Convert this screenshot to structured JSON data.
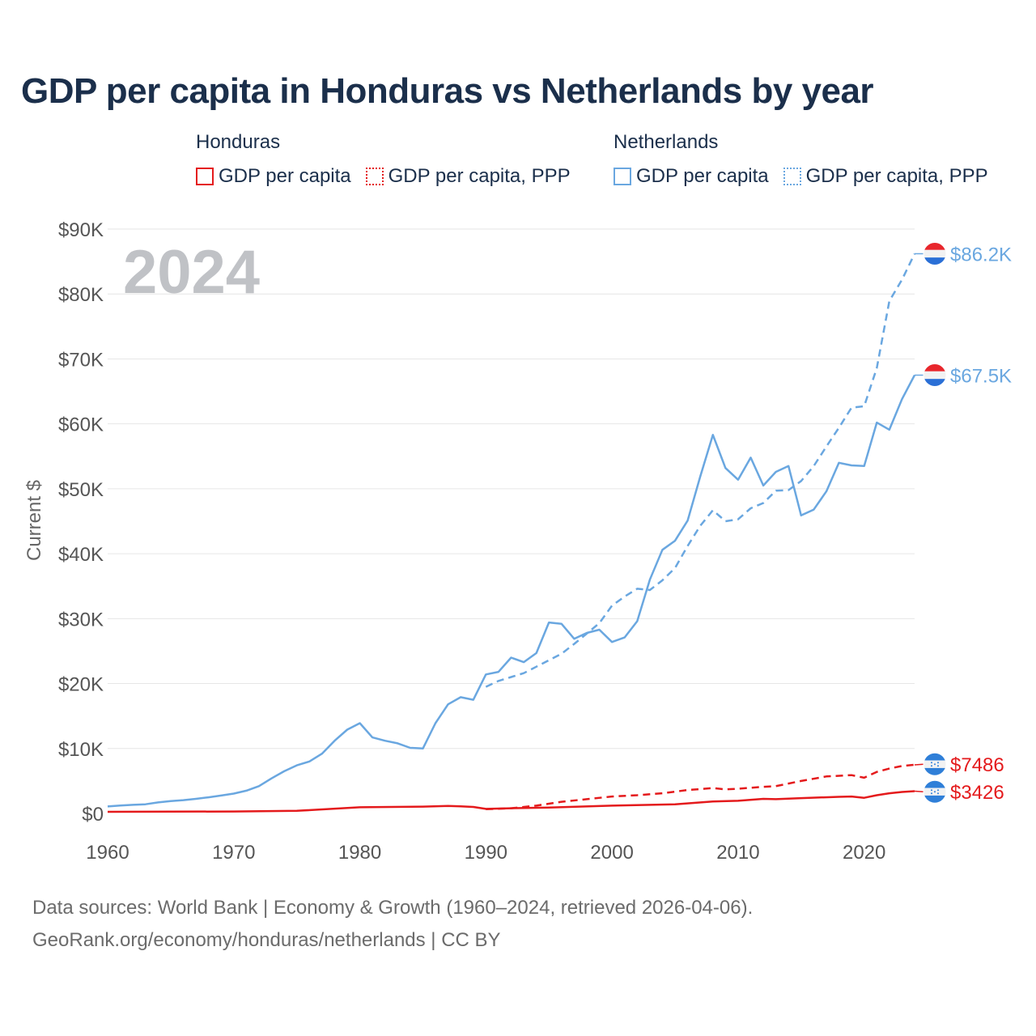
{
  "title": "GDP per capita in Honduras vs Netherlands by year",
  "legend": {
    "groups": [
      {
        "name": "Honduras",
        "items": [
          "GDP per capita",
          "GDP per capita, PPP"
        ]
      },
      {
        "name": "Netherlands",
        "items": [
          "GDP per capita",
          "GDP per capita, PPP"
        ]
      }
    ]
  },
  "colors": {
    "honduras": "#e41a1c",
    "netherlands": "#6aa7e0",
    "year_label": "#c0c2c6"
  },
  "footer": {
    "line1": "Data sources: World Bank | Economy & Growth (1960–2024, retrieved 2026-04-06).",
    "line2": "GeoRank.org/economy/honduras/netherlands | CC BY"
  },
  "chart_data": {
    "type": "line",
    "ylabel": "Current $",
    "year_label": "2024",
    "xlim": [
      1960,
      2024
    ],
    "ylim": [
      0,
      90000
    ],
    "x_ticks": [
      1960,
      1970,
      1980,
      1990,
      2000,
      2010,
      2020
    ],
    "x_tick_labels": [
      "1960",
      "1970",
      "1980",
      "1990",
      "2000",
      "2010",
      "2020"
    ],
    "y_ticks": [
      0,
      10000,
      20000,
      30000,
      40000,
      50000,
      60000,
      70000,
      80000,
      90000
    ],
    "y_tick_labels": [
      "$0",
      "$10K",
      "$20K",
      "$30K",
      "$40K",
      "$50K",
      "$60K",
      "$70K",
      "$80K",
      "$90K"
    ],
    "series": [
      {
        "name": "Netherlands GDP per capita",
        "country": "netherlands",
        "style": "solid",
        "end_label": "$67.5K",
        "x": [
          1960,
          1961,
          1962,
          1963,
          1964,
          1965,
          1966,
          1967,
          1968,
          1969,
          1970,
          1971,
          1972,
          1973,
          1974,
          1975,
          1976,
          1977,
          1978,
          1979,
          1980,
          1981,
          1982,
          1983,
          1984,
          1985,
          1986,
          1987,
          1988,
          1989,
          1990,
          1991,
          1992,
          1993,
          1994,
          1995,
          1996,
          1997,
          1998,
          1999,
          2000,
          2001,
          2002,
          2003,
          2004,
          2005,
          2006,
          2007,
          2008,
          2009,
          2010,
          2011,
          2012,
          2013,
          2014,
          2015,
          2016,
          2017,
          2018,
          2019,
          2020,
          2021,
          2022,
          2023,
          2024
        ],
        "values": [
          1070,
          1210,
          1320,
          1410,
          1700,
          1900,
          2050,
          2250,
          2480,
          2750,
          3050,
          3500,
          4200,
          5400,
          6500,
          7400,
          8000,
          9200,
          11200,
          12900,
          13900,
          11700,
          11200,
          10800,
          10100,
          10000,
          13900,
          16800,
          17900,
          17500,
          21400,
          21800,
          24000,
          23300,
          24700,
          29400,
          29200,
          26900,
          27800,
          28300,
          26400,
          27100,
          29600,
          36000,
          40600,
          42000,
          45100,
          51900,
          58300,
          53200,
          51400,
          54800,
          50500,
          52600,
          53500,
          45900,
          46800,
          49600,
          54000,
          53600,
          53500,
          60200,
          59100,
          63800,
          67500
        ]
      },
      {
        "name": "Netherlands GDP per capita, PPP",
        "country": "netherlands",
        "style": "dashed",
        "end_label": "$86.2K",
        "x": [
          1990,
          1991,
          1992,
          1993,
          1994,
          1995,
          1996,
          1997,
          1998,
          1999,
          2000,
          2001,
          2002,
          2003,
          2004,
          2005,
          2006,
          2007,
          2008,
          2009,
          2010,
          2011,
          2012,
          2013,
          2014,
          2015,
          2016,
          2017,
          2018,
          2019,
          2020,
          2021,
          2022,
          2023,
          2024
        ],
        "values": [
          19500,
          20400,
          21000,
          21600,
          22600,
          23600,
          24600,
          26100,
          27700,
          29300,
          32000,
          33400,
          34600,
          34400,
          35900,
          37800,
          41200,
          44300,
          46700,
          45000,
          45300,
          47000,
          47800,
          49700,
          49800,
          51200,
          53500,
          56500,
          59400,
          62500,
          62700,
          68600,
          78900,
          82200,
          86200
        ]
      },
      {
        "name": "Honduras GDP per capita",
        "country": "honduras",
        "style": "solid",
        "end_label": "$3426",
        "x": [
          1960,
          1965,
          1970,
          1975,
          1980,
          1985,
          1987,
          1988,
          1989,
          1990,
          1992,
          1995,
          2000,
          2005,
          2008,
          2010,
          2012,
          2013,
          2015,
          2018,
          2019,
          2020,
          2021,
          2022,
          2023,
          2024
        ],
        "values": [
          250,
          280,
          300,
          400,
          950,
          1050,
          1150,
          1100,
          1000,
          700,
          800,
          900,
          1200,
          1400,
          1850,
          1950,
          2250,
          2200,
          2350,
          2550,
          2600,
          2400,
          2800,
          3100,
          3300,
          3426
        ]
      },
      {
        "name": "Honduras GDP per capita, PPP",
        "country": "honduras",
        "style": "dashed",
        "end_label": "$7486",
        "x": [
          1990,
          1992,
          1994,
          1996,
          1998,
          2000,
          2002,
          2004,
          2006,
          2008,
          2009,
          2010,
          2012,
          2013,
          2015,
          2017,
          2019,
          2020,
          2021,
          2022,
          2023,
          2024
        ],
        "values": [
          650,
          800,
          1200,
          1800,
          2200,
          2600,
          2800,
          3100,
          3600,
          3900,
          3700,
          3800,
          4100,
          4200,
          5000,
          5700,
          5900,
          5500,
          6400,
          6900,
          7300,
          7486
        ]
      }
    ]
  }
}
